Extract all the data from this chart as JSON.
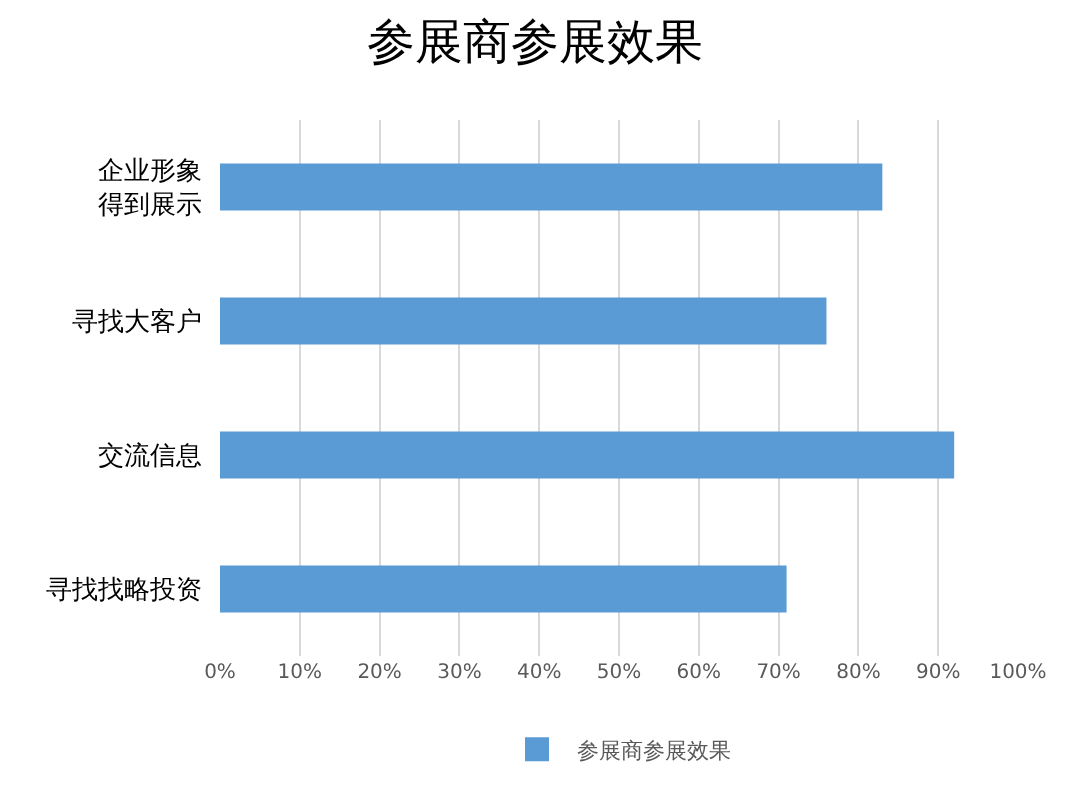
{
  "chart_data": {
    "type": "bar",
    "orientation": "horizontal",
    "title": "参展商参展效果",
    "categories": [
      "企业形象得到展示",
      "寻找大客户",
      "交流信息",
      "寻找找略投资"
    ],
    "series": [
      {
        "name": "参展商参展效果",
        "color": "#5b9bd5",
        "values": [
          0.83,
          0.76,
          0.92,
          0.71
        ]
      }
    ],
    "xlim": [
      0,
      1
    ],
    "xticks": [
      {
        "value": 0,
        "label": "0%"
      },
      {
        "value": 0.1,
        "label": "10%"
      },
      {
        "value": 0.2,
        "label": "20%"
      },
      {
        "value": 0.3,
        "label": "30%"
      },
      {
        "value": 0.4,
        "label": "40%"
      },
      {
        "value": 0.5,
        "label": "50%"
      },
      {
        "value": 0.6,
        "label": "60%"
      },
      {
        "value": 0.7,
        "label": "70%"
      },
      {
        "value": 0.8,
        "label": "80%"
      },
      {
        "value": 0.9,
        "label": "90%"
      },
      {
        "value": 1,
        "label": "100%"
      }
    ],
    "grid": "x",
    "legend": "bottom"
  }
}
